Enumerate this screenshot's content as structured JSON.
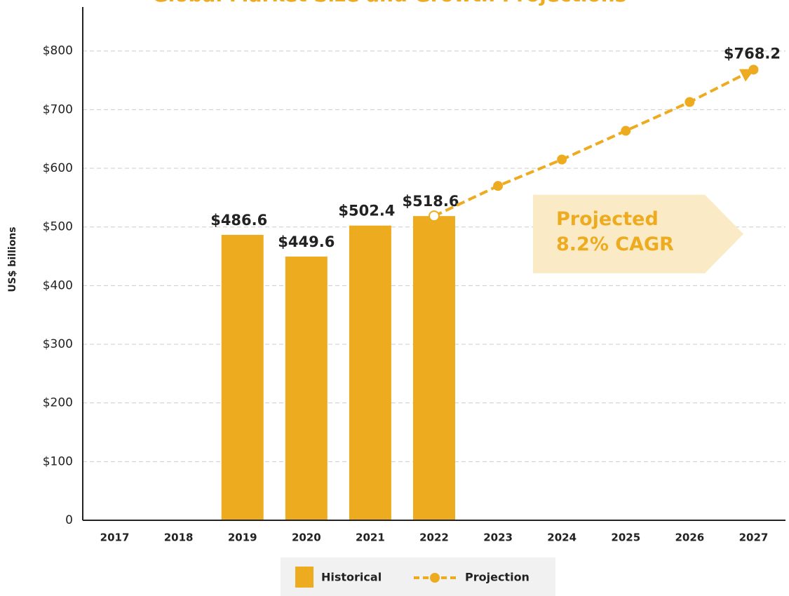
{
  "chart_data": {
    "type": "bar",
    "title": "Global Market Size and Growth Projections",
    "y_label": "US$ billions",
    "categories": [
      "2017",
      "2018",
      "2019",
      "2020",
      "2021",
      "2022",
      "2023",
      "2024",
      "2025",
      "2026",
      "2027"
    ],
    "series": [
      {
        "name": "Historical",
        "type": "bar",
        "color": "#EDAB20",
        "values": [
          null,
          null,
          486.6,
          449.6,
          502.4,
          518.6,
          null,
          null,
          null,
          null,
          null
        ],
        "value_labels": [
          null,
          null,
          "$486.6",
          "$449.6",
          "$502.4",
          "$518.6",
          null,
          null,
          null,
          null,
          null
        ]
      },
      {
        "name": "Projection",
        "type": "line",
        "color": "#EDAB20",
        "values": [
          null,
          null,
          null,
          null,
          null,
          518.6,
          570,
          615,
          664,
          713,
          768.2
        ],
        "value_labels": [
          null,
          null,
          null,
          null,
          null,
          null,
          null,
          null,
          null,
          null,
          "$768.2"
        ]
      }
    ],
    "ylim": [
      0,
      875
    ],
    "yticks": [
      0,
      {
        "value": 100,
        "label": "$100"
      },
      {
        "value": 200,
        "label": "$200"
      },
      {
        "value": 300,
        "label": "$300"
      },
      {
        "value": 400,
        "label": "$400"
      },
      {
        "value": 500,
        "label": "$500"
      },
      {
        "value": 600,
        "label": "$600"
      },
      {
        "value": 700,
        "label": "$700"
      },
      {
        "value": 800,
        "label": "$800"
      }
    ],
    "grid": true,
    "annotation": {
      "lines": [
        "Projected",
        "8.2% CAGR"
      ],
      "color": "#FBEAC6",
      "text_color": "#EDAB20"
    },
    "legend": "bottom"
  }
}
